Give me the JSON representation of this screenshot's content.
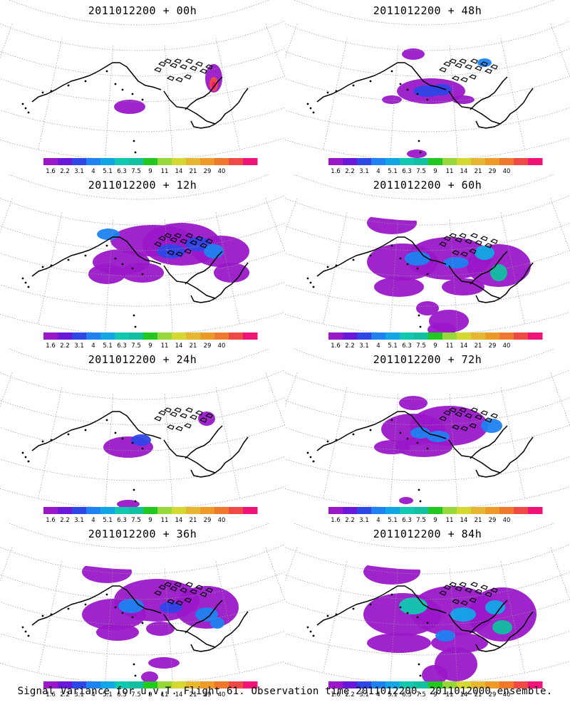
{
  "footer": "Signal Variance for u,v,T. Flight 61. Observation time 2011012200. 2011012000 ensemble.",
  "colorbar": {
    "tick_labels": [
      "1.6",
      "2.2",
      "3.1",
      "4",
      "5.1",
      "6.3",
      "7.5",
      "9",
      "11",
      "14",
      "21",
      "29",
      "40"
    ],
    "colors": [
      "#9a18c8",
      "#6a18d8",
      "#2e46e6",
      "#1e82f0",
      "#12a6e6",
      "#10c8b0",
      "#10c0a0",
      "#22c81e",
      "#96d83a",
      "#d6d832",
      "#e6b832",
      "#ee9a28",
      "#f0782c",
      "#f04a46",
      "#f01478"
    ]
  },
  "panels": [
    {
      "title": "2011012200 + 00h",
      "level": 0
    },
    {
      "title": "2011012200 + 48h",
      "level": 4
    },
    {
      "title": "2011012200 + 12h",
      "level": 1
    },
    {
      "title": "2011012200 + 60h",
      "level": 5
    },
    {
      "title": "2011012200 + 24h",
      "level": 2
    },
    {
      "title": "2011012200 + 72h",
      "level": 6
    },
    {
      "title": "2011012200 + 36h",
      "level": 3
    },
    {
      "title": "2011012200 + 84h",
      "level": 7
    }
  ]
}
